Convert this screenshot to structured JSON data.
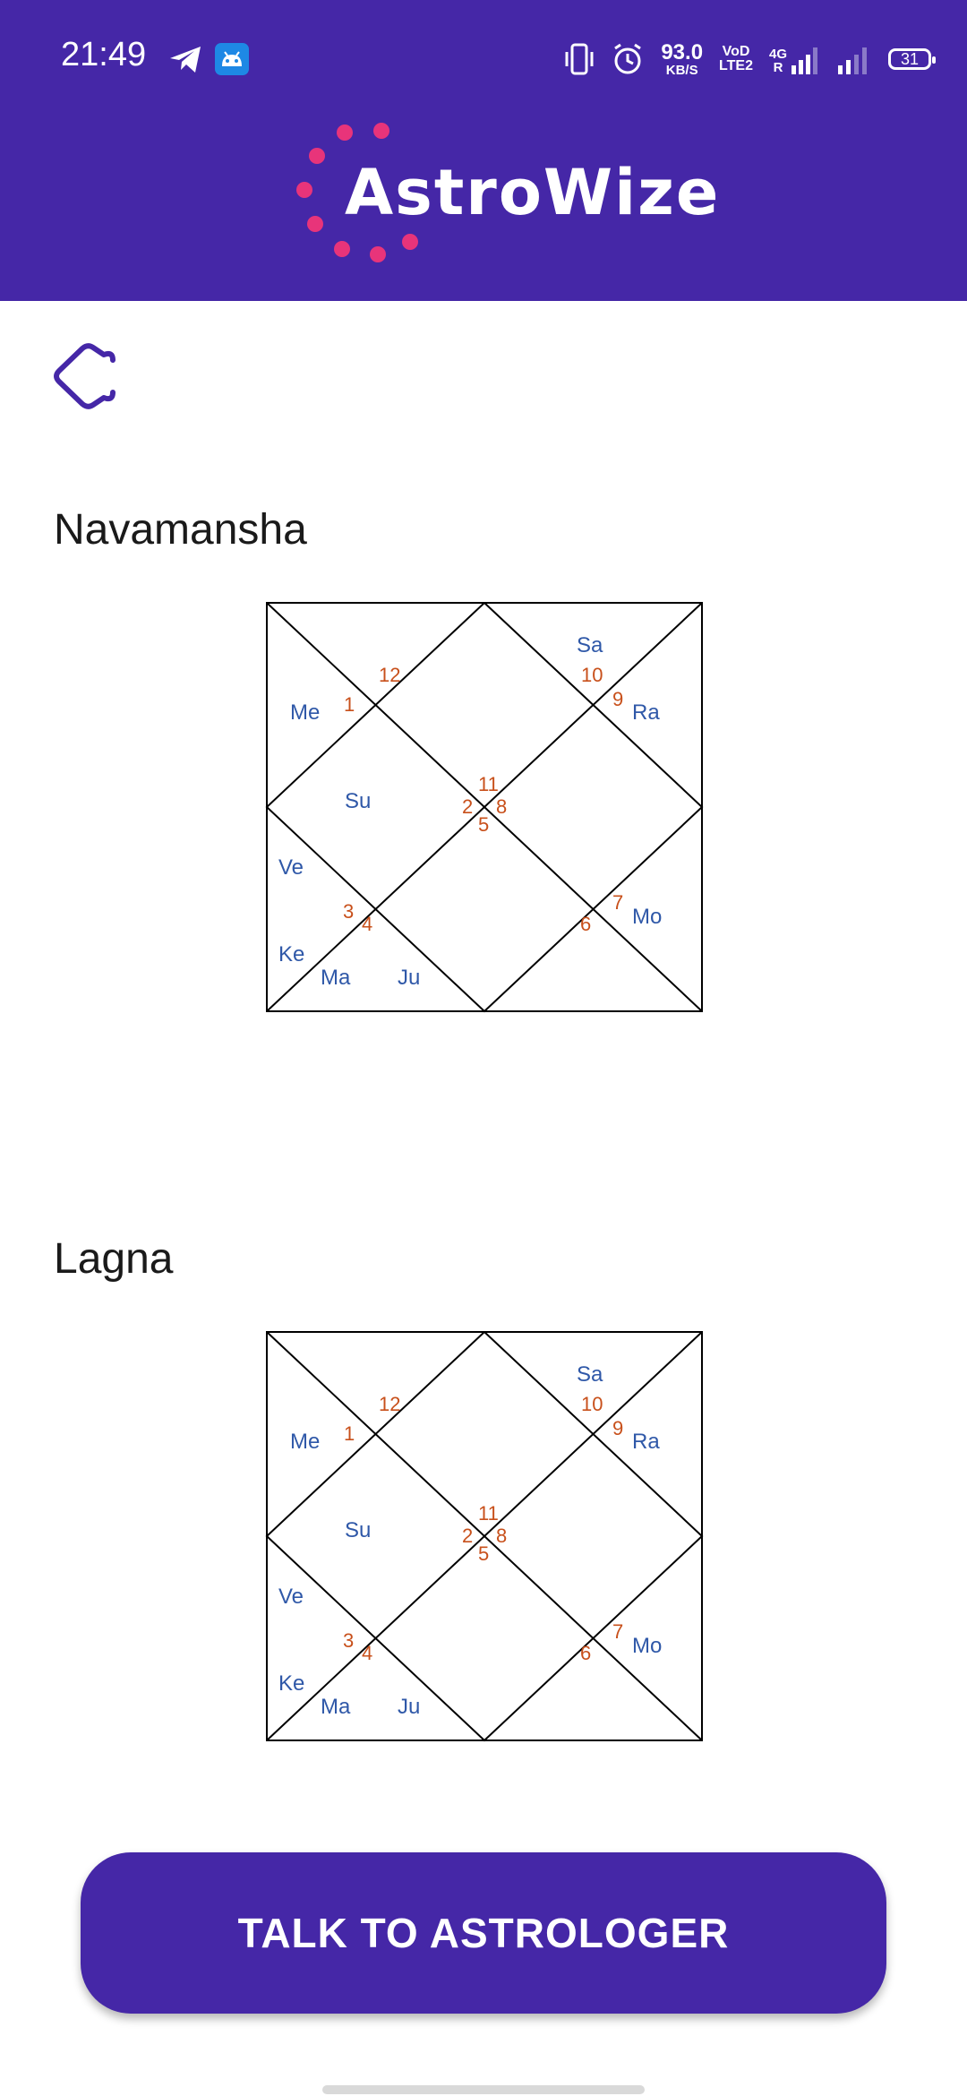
{
  "status_bar": {
    "time": "21:49",
    "net_speed_value": "93.0",
    "net_speed_unit": "KB/S",
    "volte_top": "VoD",
    "volte_bottom": "LTE2",
    "network_top": "4G",
    "network_bottom": "R",
    "battery": "31"
  },
  "header": {
    "app_name": "AstroWize",
    "brand_color": "#4527a7",
    "logo_dot_color": "#e8347a"
  },
  "back_icon": "back-arrow-icon",
  "charts": [
    {
      "title": "Navamansha",
      "houses": {
        "h1": "1",
        "h2": "2",
        "h3": "3",
        "h4": "4",
        "h5": "5",
        "h6": "6",
        "h7": "7",
        "h8": "8",
        "h9": "9",
        "h10": "10",
        "h11": "11",
        "h12": "12"
      },
      "planets": {
        "me": "Me",
        "sa": "Sa",
        "ra": "Ra",
        "su": "Su",
        "ve": "Ve",
        "mo": "Mo",
        "ke": "Ke",
        "ma": "Ma",
        "ju": "Ju"
      }
    },
    {
      "title": "Lagna",
      "houses": {
        "h1": "1",
        "h2": "2",
        "h3": "3",
        "h4": "4",
        "h5": "5",
        "h6": "6",
        "h7": "7",
        "h8": "8",
        "h9": "9",
        "h10": "10",
        "h11": "11",
        "h12": "12"
      },
      "planets": {
        "me": "Me",
        "sa": "Sa",
        "ra": "Ra",
        "su": "Su",
        "ve": "Ve",
        "mo": "Mo",
        "ke": "Ke",
        "ma": "Ma",
        "ju": "Ju"
      }
    }
  ],
  "cta": {
    "label": "TALK TO ASTROLOGER"
  },
  "colors": {
    "planet": "#2f58a8",
    "house_number": "#c8501b"
  }
}
